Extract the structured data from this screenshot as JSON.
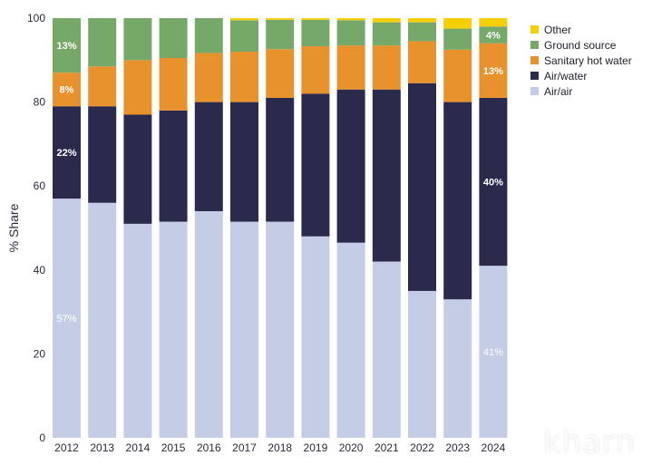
{
  "chart_data": {
    "type": "bar",
    "stacked": true,
    "ylabel": "% Share",
    "ylim": [
      0,
      100
    ],
    "yticks": [
      0,
      20,
      40,
      60,
      80,
      100
    ],
    "categories": [
      "2012",
      "2013",
      "2014",
      "2015",
      "2016",
      "2017",
      "2018",
      "2019",
      "2020",
      "2021",
      "2022",
      "2023",
      "2024"
    ],
    "series": [
      {
        "name": "Air/air",
        "color": "#c5cde6",
        "values": [
          57,
          56,
          51,
          51.5,
          54,
          51.5,
          51.5,
          48,
          46.5,
          42,
          35,
          33,
          41
        ]
      },
      {
        "name": "Air/water",
        "color": "#2b2a4c",
        "values": [
          22,
          23,
          26,
          26.5,
          26,
          28.5,
          29.5,
          34,
          36.5,
          41,
          49.5,
          47,
          40
        ]
      },
      {
        "name": "Sanitary hot water",
        "color": "#e8922e",
        "values": [
          8,
          9.5,
          13,
          12.5,
          11.7,
          12,
          11.6,
          11.3,
          10.5,
          10.5,
          10,
          12.5,
          13
        ]
      },
      {
        "name": "Ground source",
        "color": "#76a86a",
        "values": [
          13,
          11.5,
          10,
          9.5,
          8.3,
          7.5,
          7,
          6.3,
          6,
          5.5,
          4.5,
          5,
          4
        ]
      },
      {
        "name": "Other",
        "color": "#f5cf0a",
        "values": [
          0,
          0,
          0,
          0,
          0,
          0.5,
          0.4,
          0.4,
          0.5,
          1,
          1,
          2.5,
          2
        ]
      }
    ],
    "data_labels": [
      {
        "category": "2012",
        "series": "Ground source",
        "text": "13%"
      },
      {
        "category": "2012",
        "series": "Sanitary hot water",
        "text": "8%"
      },
      {
        "category": "2012",
        "series": "Air/water",
        "text": "22%"
      },
      {
        "category": "2012",
        "series": "Air/air",
        "text": "57%"
      },
      {
        "category": "2024",
        "series": "Ground source",
        "text": "4%"
      },
      {
        "category": "2024",
        "series": "Sanitary hot water",
        "text": "13%"
      },
      {
        "category": "2024",
        "series": "Air/water",
        "text": "40%"
      },
      {
        "category": "2024",
        "series": "Air/air",
        "text": "41%"
      }
    ],
    "legend": {
      "placement": "top-right",
      "entries": [
        "Other",
        "Ground source",
        "Sanitary hot water",
        "Air/water",
        "Air/air"
      ]
    }
  },
  "watermark": "kharn"
}
